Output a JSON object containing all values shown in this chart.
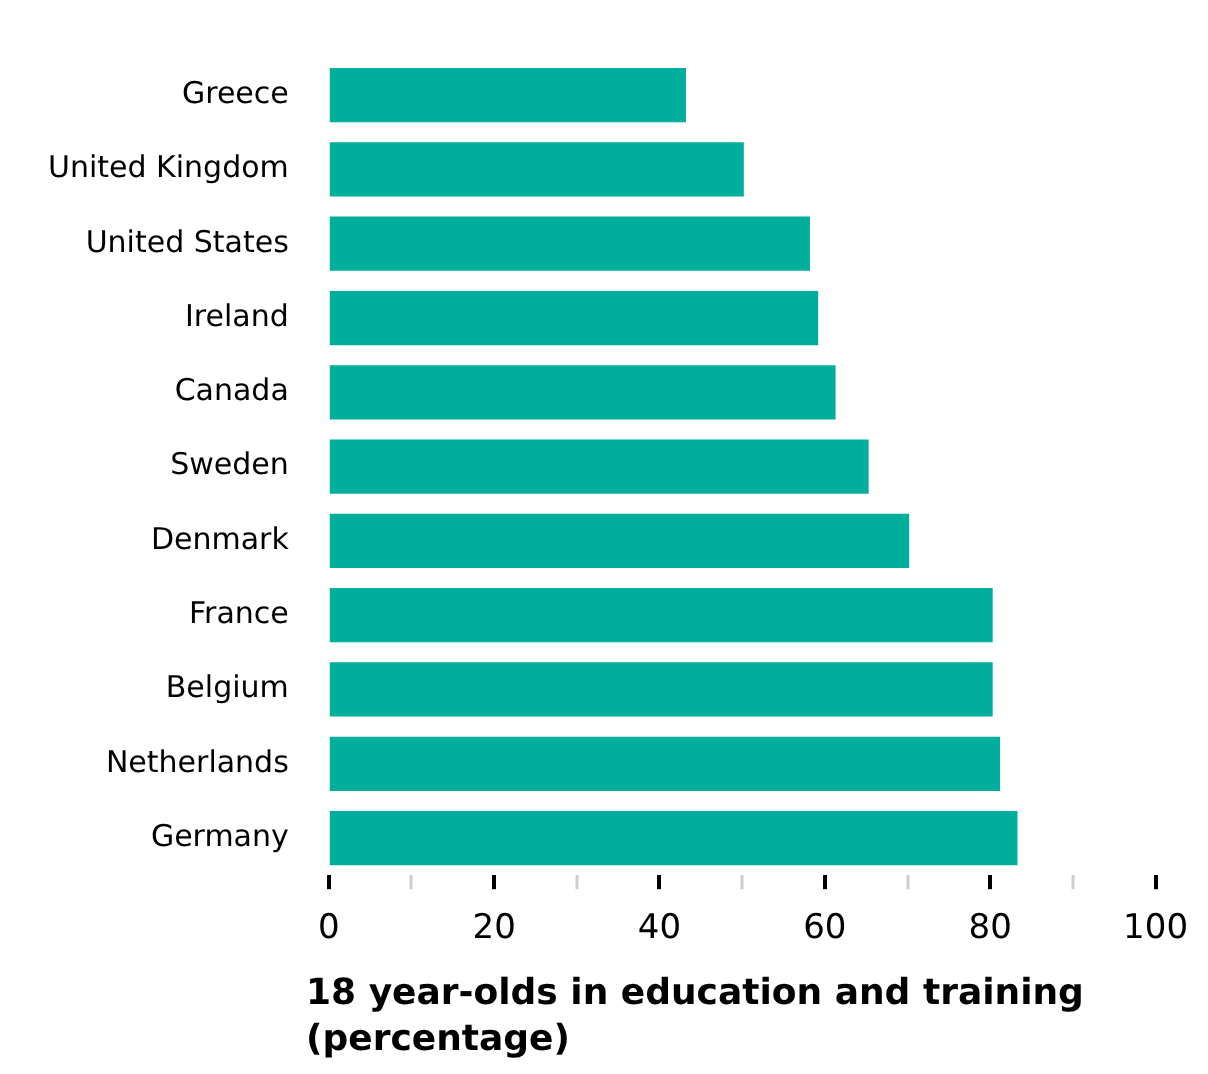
{
  "chart_data": {
    "type": "bar",
    "orientation": "horizontal",
    "xlabel": "18 year-olds in education and training (percentage)",
    "categories": [
      "Greece",
      "United Kingdom",
      "United States",
      "Ireland",
      "Canada",
      "Sweden",
      "Denmark",
      "France",
      "Belgium",
      "Netherlands",
      "Germany"
    ],
    "values": [
      43.2,
      50.2,
      58.2,
      59.2,
      61.3,
      65.3,
      70.2,
      80.3,
      80.3,
      81.2,
      83.3
    ],
    "color": "#00ae9c",
    "xlim": [
      0,
      100
    ],
    "xticks": [
      0,
      {
        "value": 10,
        "label": null
      },
      20,
      {
        "value": 30,
        "label": null
      },
      40,
      {
        "value": 50,
        "label": null
      },
      60,
      {
        "value": 70,
        "label": null
      },
      80,
      {
        "value": 90,
        "label": null
      },
      100
    ],
    "grid": false,
    "legend": false
  }
}
